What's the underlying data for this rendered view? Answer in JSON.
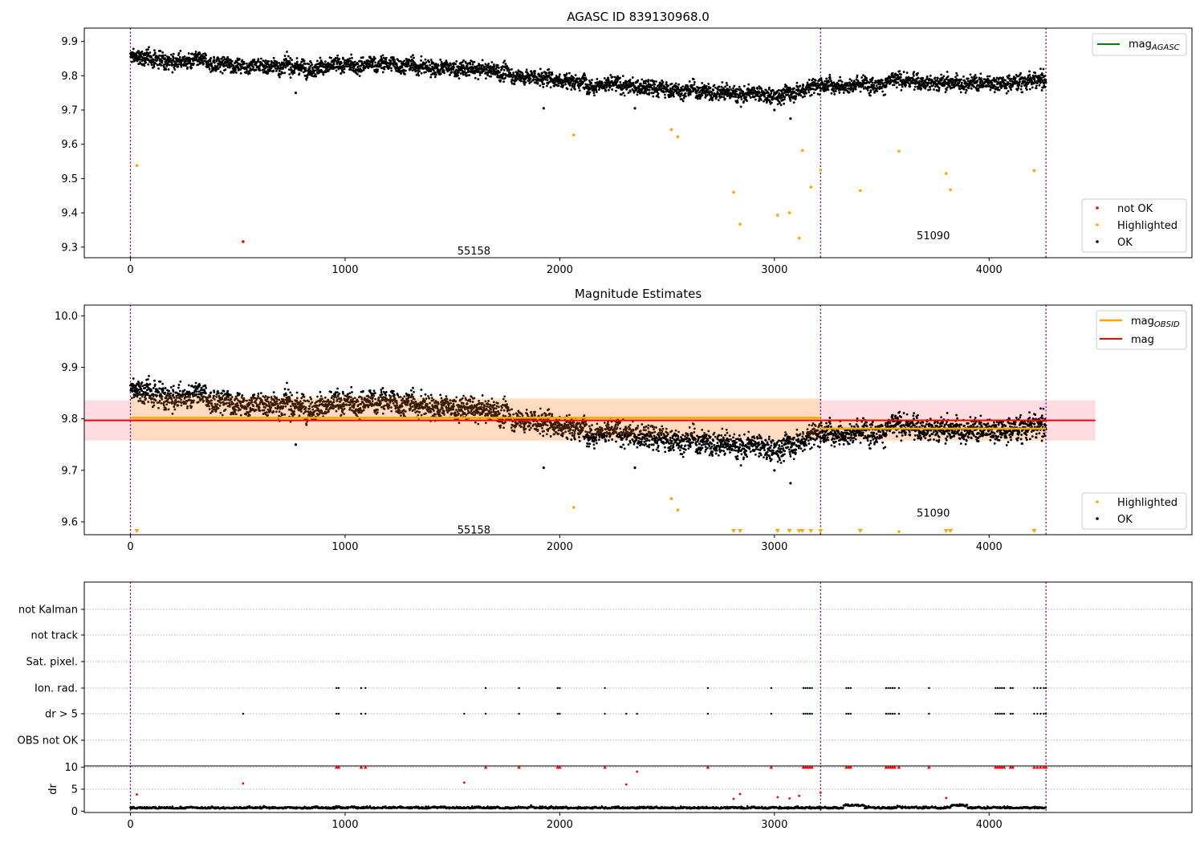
{
  "colors": {
    "ok": "#000000",
    "not_ok": "#ff0000",
    "highlighted": "#ffa500",
    "mag_agasc": "#008000",
    "mag_obsid": "#ffa500",
    "mag": "#ff0000",
    "obsid_line": "#800080",
    "band_obsid": "#ffdab3",
    "band_mag": "#ffd0d8"
  },
  "chart_data": [
    {
      "id": "agasc",
      "type": "scatter",
      "title": "AGASC ID 839130968.0",
      "xlim": [
        -215,
        4945
      ],
      "ylim": [
        9.269,
        9.939
      ],
      "xticks": [
        0,
        1000,
        2000,
        3000,
        4000
      ],
      "yticks": [
        9.3,
        9.4,
        9.5,
        9.6,
        9.7,
        9.8,
        9.9
      ],
      "ytick_labels": [
        "9.3",
        "9.4",
        "9.5",
        "9.6",
        "9.7",
        "9.8",
        "9.9"
      ],
      "obsid_boundaries": [
        0,
        3215,
        4265
      ],
      "annotations": [
        {
          "text": "55158",
          "x": 1600,
          "y": 9.29
        },
        {
          "text": "51090",
          "x": 3740,
          "y": 9.335
        }
      ],
      "legend_top": {
        "placement": "top-right",
        "entries": [
          {
            "label": "mag",
            "sub": "AGASC",
            "color_key": "mag_agasc",
            "kind": "line"
          }
        ]
      },
      "legend_bottom": {
        "placement": "lower-right",
        "entries": [
          {
            "label": "not OK",
            "color_key": "not_ok",
            "kind": "dot"
          },
          {
            "label": "Highlighted",
            "color_key": "highlighted",
            "kind": "dot"
          },
          {
            "label": "OK",
            "color_key": "ok",
            "kind": "dot"
          }
        ]
      },
      "trend": [
        [
          0,
          9.855
        ],
        [
          200,
          9.845
        ],
        [
          400,
          9.835
        ],
        [
          600,
          9.83
        ],
        [
          900,
          9.825
        ],
        [
          1200,
          9.835
        ],
        [
          1500,
          9.82
        ],
        [
          1700,
          9.815
        ],
        [
          1800,
          9.8
        ],
        [
          2000,
          9.79
        ],
        [
          2200,
          9.775
        ],
        [
          2500,
          9.76
        ],
        [
          2700,
          9.755
        ],
        [
          2900,
          9.745
        ],
        [
          3000,
          9.74
        ],
        [
          3215,
          9.775
        ],
        [
          3400,
          9.775
        ],
        [
          3600,
          9.785
        ],
        [
          3800,
          9.78
        ],
        [
          4000,
          9.78
        ],
        [
          4265,
          9.785
        ]
      ],
      "ok_extra": [
        [
          770,
          9.75
        ],
        [
          1925,
          9.705
        ],
        [
          2350,
          9.705
        ],
        [
          3000,
          9.7
        ],
        [
          3075,
          9.675
        ]
      ],
      "highlighted_points": [
        [
          30,
          9.538
        ],
        [
          2065,
          9.627
        ],
        [
          2520,
          9.643
        ],
        [
          2550,
          9.622
        ],
        [
          2810,
          9.46
        ],
        [
          2840,
          9.367
        ],
        [
          3015,
          9.393
        ],
        [
          3070,
          9.4
        ],
        [
          3115,
          9.326
        ],
        [
          3130,
          9.582
        ],
        [
          3170,
          9.475
        ],
        [
          3215,
          9.525
        ],
        [
          3400,
          9.465
        ],
        [
          3580,
          9.58
        ],
        [
          3800,
          9.515
        ],
        [
          3820,
          9.467
        ],
        [
          4210,
          9.523
        ]
      ],
      "not_ok_points": [
        [
          525,
          9.316
        ]
      ]
    },
    {
      "id": "estimates",
      "type": "scatter",
      "title": "Magnitude Estimates",
      "xlim": [
        -215,
        4945
      ],
      "ylim": [
        9.575,
        10.021
      ],
      "xticks": [
        0,
        1000,
        2000,
        3000,
        4000
      ],
      "yticks": [
        9.6,
        9.7,
        9.8,
        9.9,
        10.0
      ],
      "ytick_labels": [
        "9.6",
        "9.7",
        "9.8",
        "9.9",
        "10.0"
      ],
      "obsid_boundaries": [
        0,
        3215,
        4265
      ],
      "annotations": [
        {
          "text": "55158",
          "x": 1600,
          "y": 9.585
        },
        {
          "text": "51090",
          "x": 3740,
          "y": 9.618
        }
      ],
      "legend_top": {
        "placement": "top-right",
        "entries": [
          {
            "label": "mag",
            "sub": "OBSID",
            "color_key": "mag_obsid",
            "kind": "line"
          },
          {
            "label": "mag",
            "sub": "",
            "color_key": "mag",
            "kind": "line"
          }
        ]
      },
      "legend_bottom": {
        "placement": "lower-right",
        "entries": [
          {
            "label": "Highlighted",
            "color_key": "highlighted",
            "kind": "dot"
          },
          {
            "label": "OK",
            "color_key": "ok",
            "kind": "dot"
          }
        ]
      },
      "mag": 9.797,
      "mag_band": [
        9.758,
        9.836
      ],
      "mag_xrange": [
        -215,
        4495
      ],
      "obsid_mags": [
        {
          "x0": 0,
          "x1": 3215,
          "mag": 9.802,
          "band": [
            9.758,
            9.84
          ]
        },
        {
          "x0": 3215,
          "x1": 4265,
          "mag": 9.781,
          "band": [
            9.758,
            9.8
          ]
        }
      ],
      "highlighted_points": [
        [
          2065,
          9.628
        ],
        [
          2520,
          9.645
        ],
        [
          2550,
          9.623
        ],
        [
          3580,
          9.581
        ]
      ],
      "highlighted_floor": [
        30,
        2810,
        2840,
        3015,
        3070,
        3115,
        3130,
        3170,
        3215,
        3400,
        3800,
        3820,
        4210
      ]
    },
    {
      "id": "flags",
      "type": "scatter",
      "xlim": [
        -215,
        4945
      ],
      "obsid_boundaries": [
        0,
        3215,
        4265
      ],
      "categories": [
        "not Kalman",
        "not track",
        "Sat. pixel.",
        "Ion. rad.",
        "dr > 5",
        "OBS not OK"
      ],
      "ion_rad_x": [
        960,
        970,
        1075,
        1095,
        1655,
        1810,
        1990,
        2000,
        2210,
        2690,
        2985,
        3135,
        3145,
        3155,
        3165,
        3175,
        3335,
        3345,
        3355,
        3520,
        3530,
        3540,
        3550,
        3560,
        3580,
        3720,
        4030,
        4040,
        4050,
        4060,
        4070,
        4100,
        4110,
        4210,
        4225,
        4240,
        4255,
        4265
      ],
      "dr5_x": [
        525,
        960,
        970,
        1075,
        1095,
        1555,
        1655,
        1810,
        1990,
        2000,
        2210,
        2310,
        2360,
        2690,
        2985,
        3135,
        3145,
        3155,
        3165,
        3175,
        3335,
        3345,
        3355,
        3520,
        3530,
        3540,
        3550,
        3560,
        3580,
        3720,
        4030,
        4040,
        4050,
        4060,
        4070,
        4100,
        4110,
        4210,
        4225,
        4240,
        4255,
        4265
      ]
    },
    {
      "id": "dr",
      "type": "scatter",
      "xlim": [
        -215,
        4945
      ],
      "ylim": [
        -0.3,
        10.3
      ],
      "xticks": [
        0,
        1000,
        2000,
        3000,
        4000
      ],
      "yticks": [
        0,
        5,
        10
      ],
      "ytick_labels": [
        "0",
        "5",
        "10"
      ],
      "ylabel": "dr",
      "obsid_boundaries": [
        0,
        3215,
        4265
      ],
      "red_points": [
        [
          30,
          3.8
        ],
        [
          525,
          6.3
        ],
        [
          1555,
          6.5
        ],
        [
          2310,
          6.1
        ],
        [
          2360,
          9.0
        ],
        [
          2810,
          2.8
        ],
        [
          2840,
          3.9
        ],
        [
          3015,
          3.2
        ],
        [
          3070,
          2.9
        ],
        [
          3115,
          3.5
        ],
        [
          3215,
          4.2
        ],
        [
          3800,
          3.0
        ]
      ],
      "red_at_ten_x": [
        960,
        970,
        1075,
        1095,
        1655,
        1810,
        1990,
        2000,
        2210,
        2690,
        2985,
        3135,
        3145,
        3155,
        3165,
        3175,
        3335,
        3345,
        3355,
        3520,
        3530,
        3540,
        3550,
        3560,
        3580,
        3720,
        4030,
        4040,
        4050,
        4060,
        4070,
        4100,
        4110,
        4210,
        4225,
        4240,
        4255,
        4265
      ]
    }
  ]
}
